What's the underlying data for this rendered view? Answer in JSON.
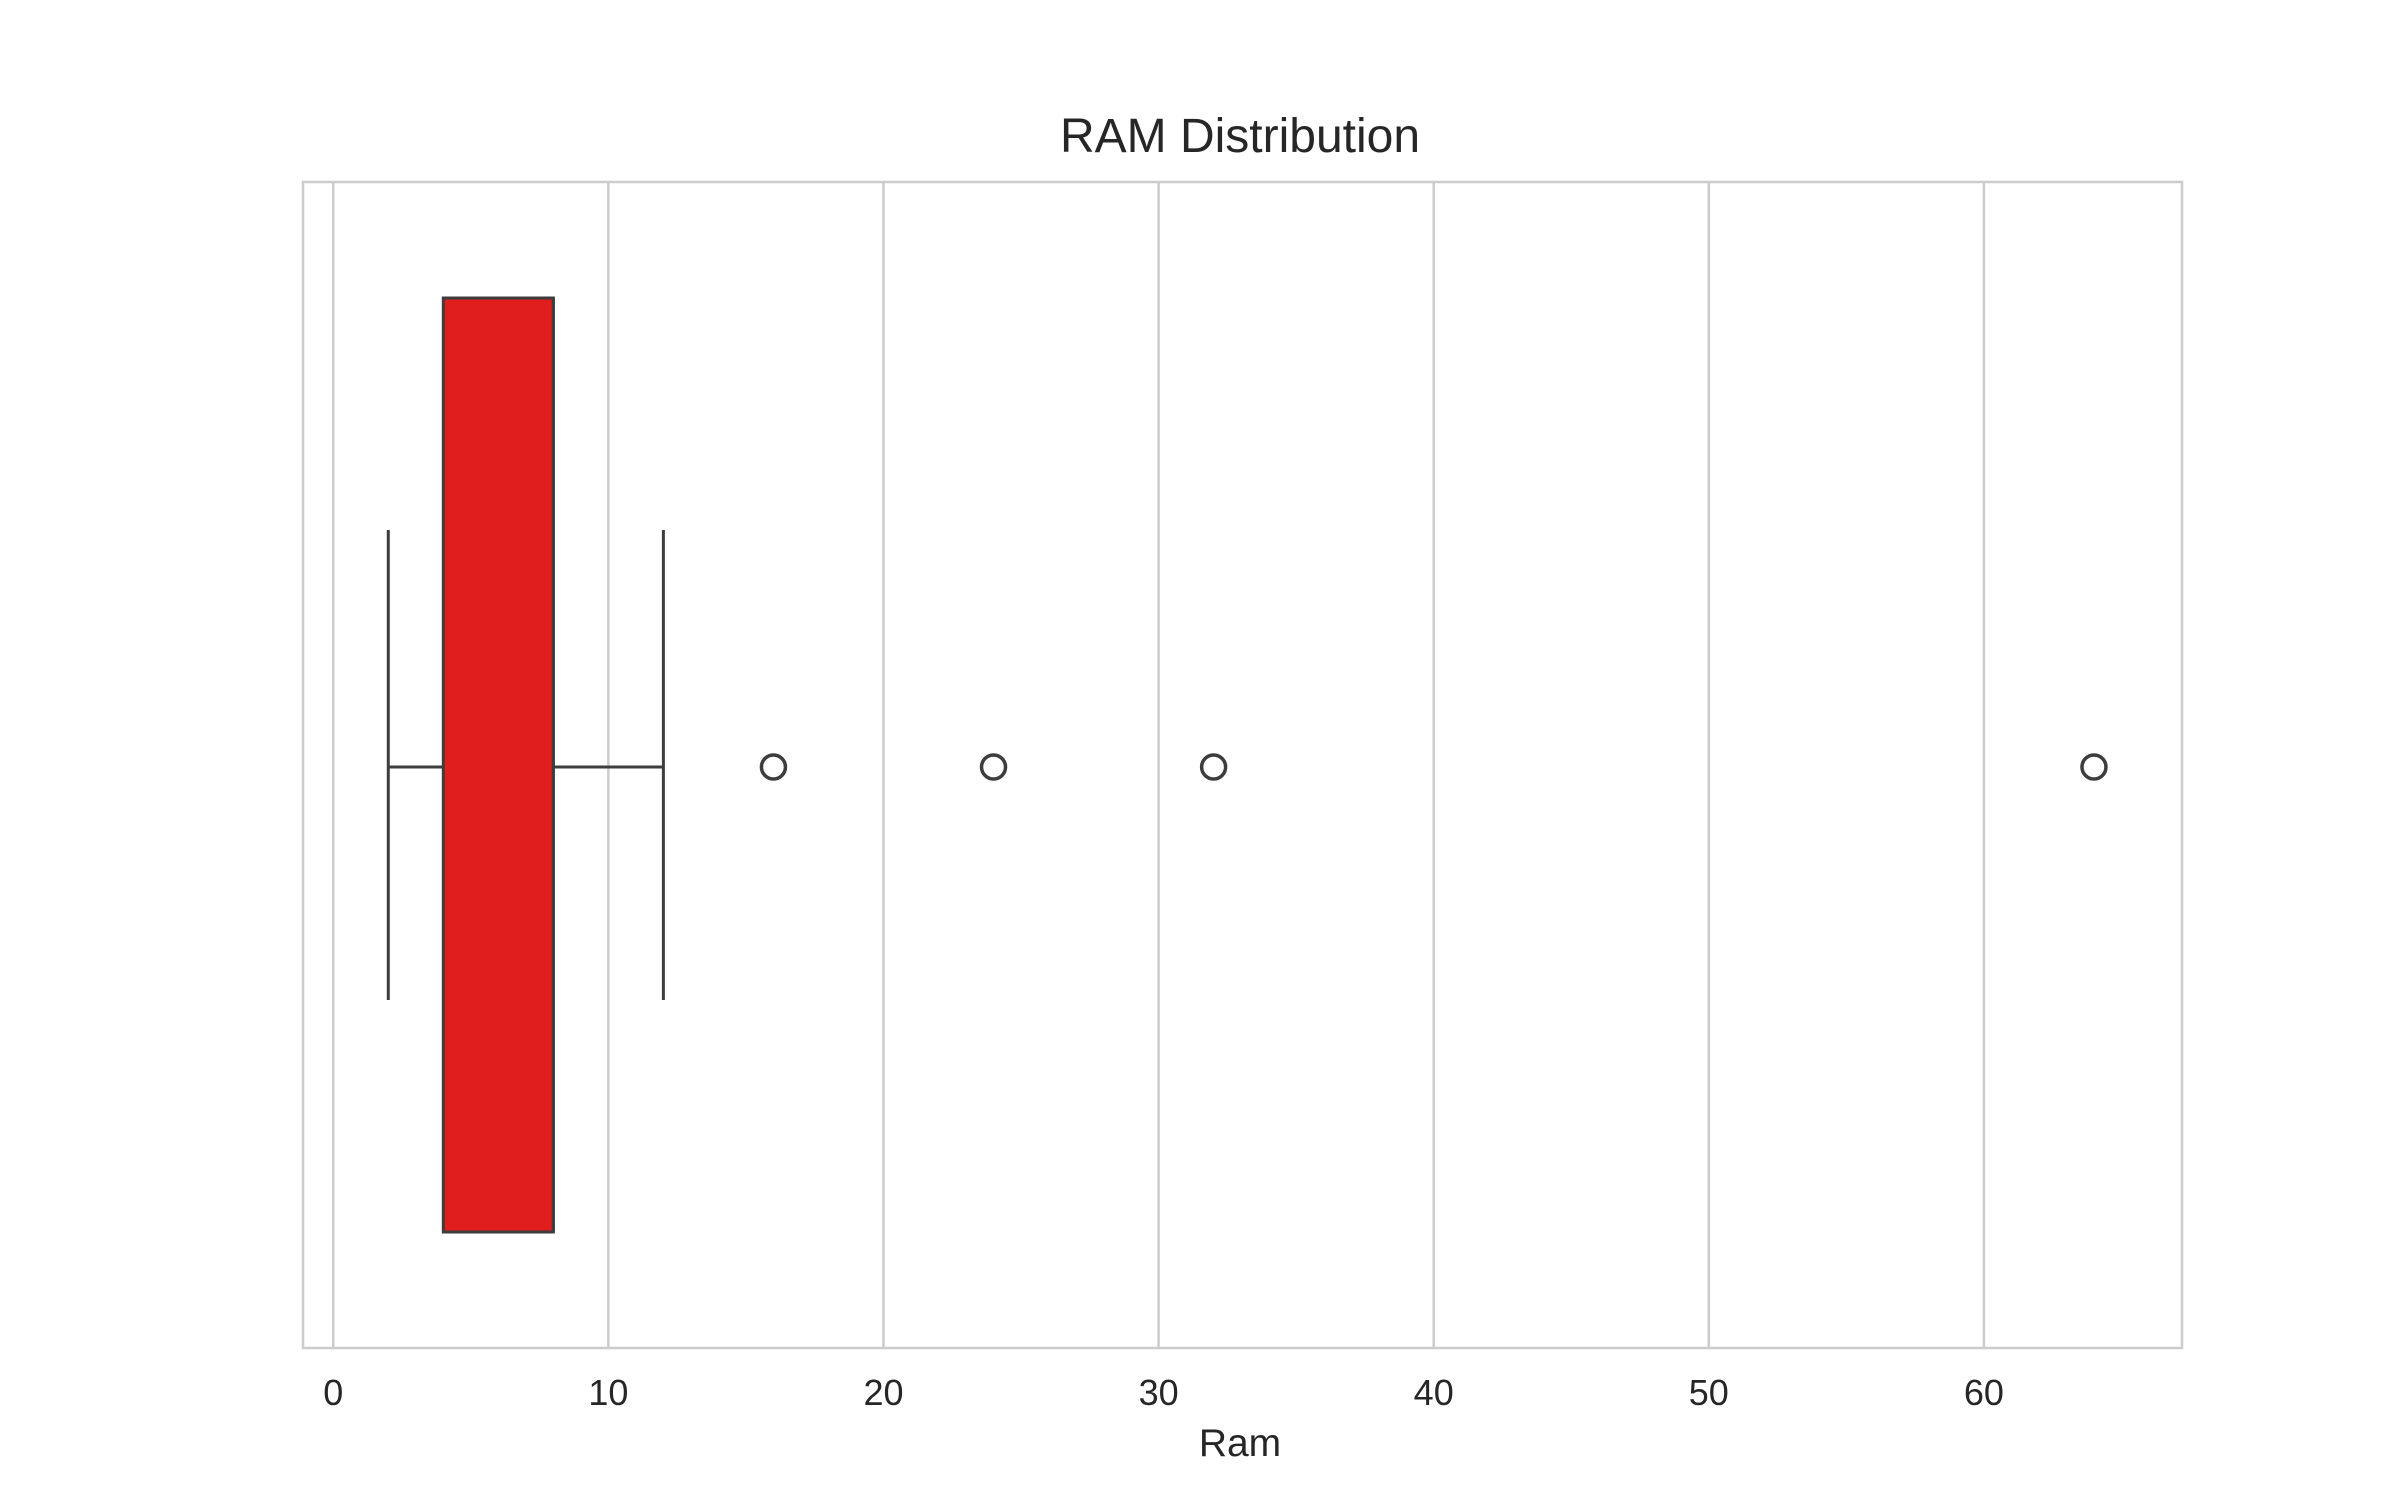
{
  "chart_data": {
    "type": "box",
    "orientation": "horizontal",
    "title": "RAM Distribution",
    "xlabel": "Ram",
    "ylabel": "",
    "xlim": [
      -1.1,
      67.2
    ],
    "xticks": [
      0,
      10,
      20,
      30,
      40,
      50,
      60
    ],
    "grid": true,
    "box": {
      "whisker_low": 2,
      "q1": 4,
      "median": 8,
      "q3": 8,
      "whisker_high": 12,
      "outliers": [
        16,
        24,
        32,
        64
      ],
      "fill_color": "#e01e1e",
      "line_color": "#3d3d3d"
    }
  }
}
